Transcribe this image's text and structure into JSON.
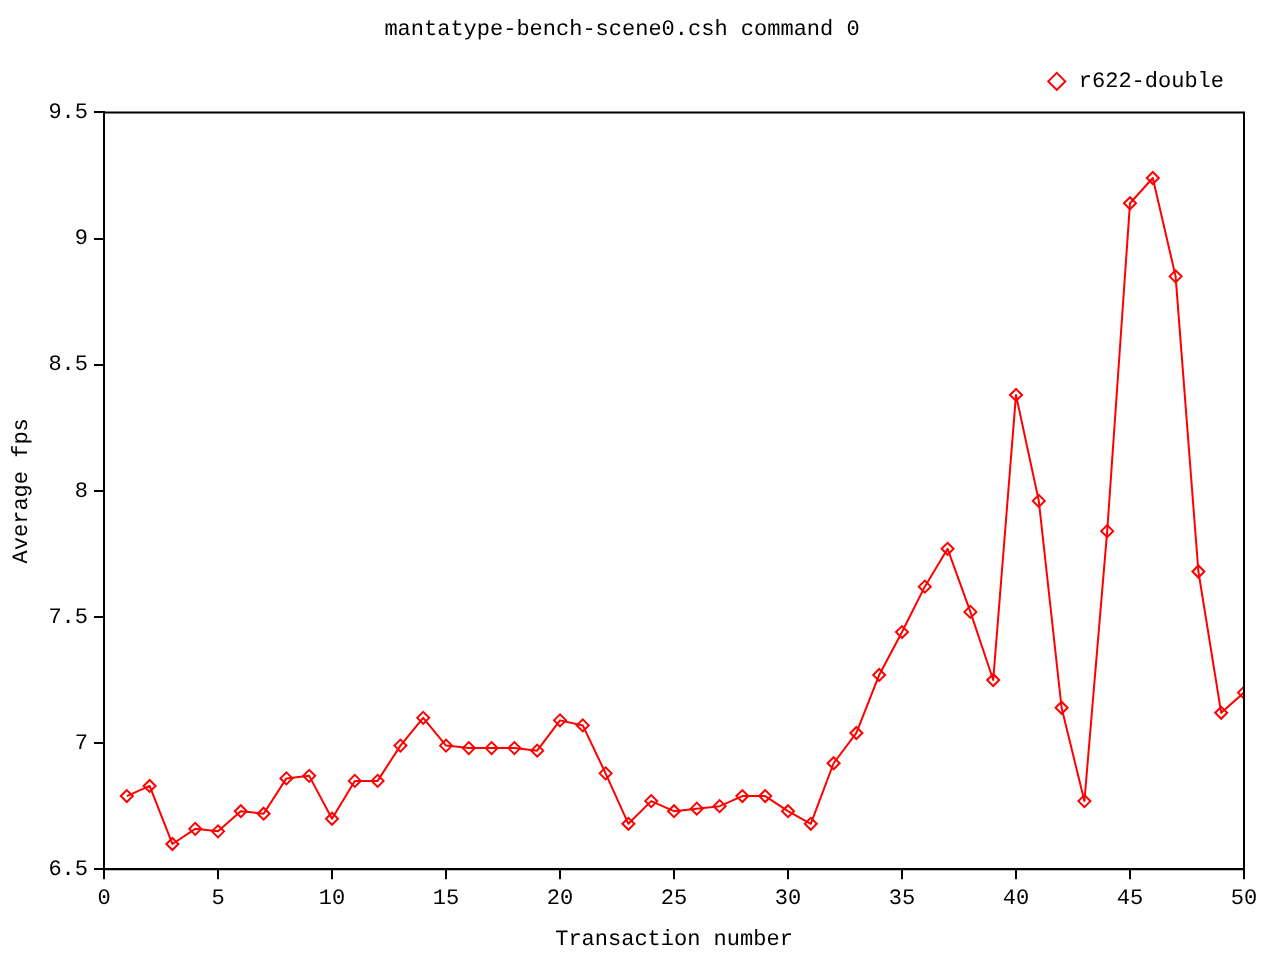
{
  "chart_data": {
    "type": "line",
    "title": "mantatype-bench-scene0.csh command 0",
    "xlabel": "Transaction number",
    "ylabel": "Average fps",
    "x": [
      1,
      2,
      3,
      4,
      5,
      6,
      7,
      8,
      9,
      10,
      11,
      12,
      13,
      14,
      15,
      16,
      17,
      18,
      19,
      20,
      21,
      22,
      23,
      24,
      25,
      26,
      27,
      28,
      29,
      30,
      31,
      32,
      33,
      34,
      35,
      36,
      37,
      38,
      39,
      40,
      41,
      42,
      43,
      44,
      45,
      46,
      47,
      48,
      49,
      50
    ],
    "series": [
      {
        "name": "r622-double",
        "color": "#ff0000",
        "values": [
          6.79,
          6.83,
          6.6,
          6.66,
          6.65,
          6.73,
          6.72,
          6.86,
          6.87,
          6.7,
          6.85,
          6.85,
          6.99,
          7.1,
          6.99,
          6.98,
          6.98,
          6.98,
          6.97,
          7.09,
          7.07,
          6.88,
          6.68,
          6.77,
          6.73,
          6.74,
          6.75,
          6.79,
          6.79,
          6.73,
          6.68,
          6.92,
          7.04,
          7.27,
          7.44,
          7.62,
          7.77,
          7.52,
          7.25,
          8.38,
          7.96,
          7.14,
          6.77,
          7.84,
          9.14,
          9.24,
          8.85,
          7.68,
          7.12,
          7.2
        ]
      }
    ],
    "xlim": [
      0,
      50
    ],
    "xticks": [
      0,
      5,
      10,
      15,
      20,
      25,
      30,
      35,
      40,
      45,
      50
    ],
    "ylim": [
      6.5,
      9.5
    ],
    "yticks": [
      6.5,
      7,
      7.5,
      8,
      8.5,
      9,
      9.5
    ],
    "grid": false,
    "legend": "top right",
    "marker": "diamond",
    "line_style": "solid"
  }
}
